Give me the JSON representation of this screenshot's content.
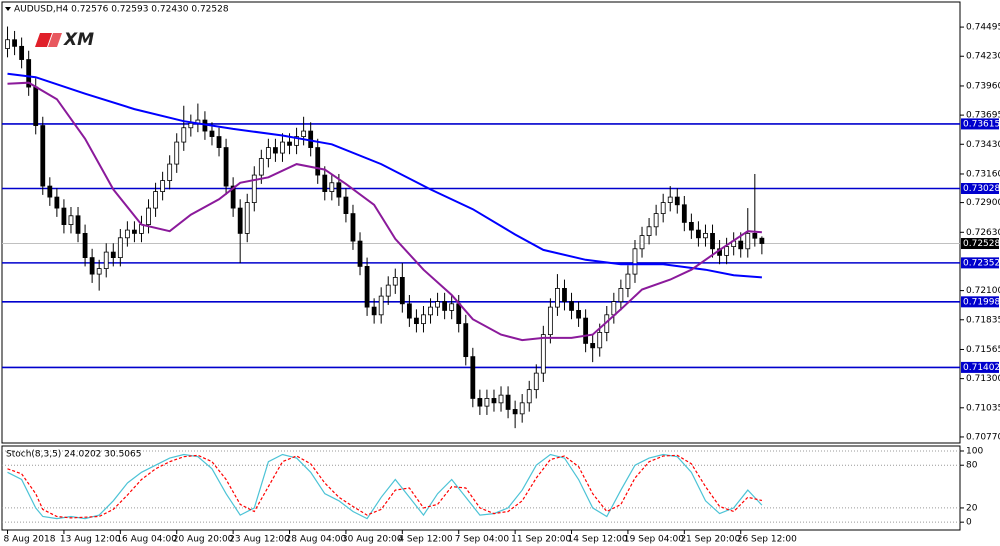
{
  "chart_data": [
    {
      "type": "candlestick",
      "title": "AUDUSD,H4  0.72576 0.72593 0.72430 0.72528",
      "logo": "XM",
      "categories": [
        "8 Aug 2018",
        null,
        null,
        null,
        null,
        null,
        null,
        null,
        "13 Aug 12:00",
        null,
        null,
        null,
        null,
        null,
        null,
        null,
        "16 Aug 04:00",
        null,
        null,
        null,
        null,
        null,
        null,
        null,
        "20 Aug 20:00",
        null,
        null,
        null,
        null,
        null,
        null,
        null,
        "23 Aug 12:00",
        null,
        null,
        null,
        null,
        null,
        null,
        null,
        "28 Aug 04:00",
        null,
        null,
        null,
        null,
        null,
        null,
        null,
        "30 Aug 20:00",
        null,
        null,
        null,
        null,
        null,
        null,
        null,
        "4 Sep 12:00",
        null,
        null,
        null,
        null,
        null,
        null,
        null,
        "7 Sep 04:00",
        null,
        null,
        null,
        null,
        null,
        null,
        null,
        "11 Sep 20:00",
        null,
        null,
        null,
        null,
        null,
        null,
        null,
        "14 Sep 12:00",
        null,
        null,
        null,
        null,
        null,
        null,
        null,
        "19 Sep 04:00",
        null,
        null,
        null,
        null,
        null,
        null,
        null,
        "21 Sep 20:00",
        null,
        null,
        null,
        null,
        null,
        null,
        null,
        "26 Sep 12:00",
        null,
        null,
        null
      ],
      "candles": [
        [
          0.743,
          0.745,
          0.7422,
          0.7438
        ],
        [
          0.7438,
          0.7446,
          0.7424,
          0.7432
        ],
        [
          0.7432,
          0.744,
          0.7412,
          0.742
        ],
        [
          0.742,
          0.7428,
          0.7387,
          0.7395
        ],
        [
          0.7395,
          0.7403,
          0.7352,
          0.736
        ],
        [
          0.736,
          0.7368,
          0.7297,
          0.7305
        ],
        [
          0.7305,
          0.7313,
          0.7287,
          0.7295
        ],
        [
          0.7295,
          0.7303,
          0.7277,
          0.7285
        ],
        [
          0.7285,
          0.7293,
          0.7262,
          0.727
        ],
        [
          0.727,
          0.7286,
          0.7262,
          0.7278
        ],
        [
          0.7278,
          0.7286,
          0.7254,
          0.7262
        ],
        [
          0.7262,
          0.727,
          0.7232,
          0.724
        ],
        [
          0.724,
          0.7248,
          0.7217,
          0.7225
        ],
        [
          0.7225,
          0.7238,
          0.721,
          0.723
        ],
        [
          0.723,
          0.7253,
          0.7222,
          0.7245
        ],
        [
          0.7245,
          0.7253,
          0.7232,
          0.724
        ],
        [
          0.724,
          0.7266,
          0.7232,
          0.7258
        ],
        [
          0.7258,
          0.7273,
          0.725,
          0.7265
        ],
        [
          0.7265,
          0.7273,
          0.7254,
          0.7262
        ],
        [
          0.7262,
          0.7278,
          0.7254,
          0.727
        ],
        [
          0.727,
          0.7293,
          0.7262,
          0.7285
        ],
        [
          0.7285,
          0.7308,
          0.7277,
          0.73
        ],
        [
          0.73,
          0.7318,
          0.7292,
          0.731
        ],
        [
          0.731,
          0.7333,
          0.7302,
          0.7325
        ],
        [
          0.7325,
          0.7353,
          0.7317,
          0.7345
        ],
        [
          0.7345,
          0.7378,
          0.7337,
          0.7358
        ],
        [
          0.7358,
          0.737,
          0.735,
          0.7362
        ],
        [
          0.7362,
          0.738,
          0.7354,
          0.7365
        ],
        [
          0.7365,
          0.7373,
          0.7347,
          0.7355
        ],
        [
          0.7355,
          0.7363,
          0.7342,
          0.735
        ],
        [
          0.735,
          0.7358,
          0.7332,
          0.734
        ],
        [
          0.734,
          0.7348,
          0.7297,
          0.7305
        ],
        [
          0.7305,
          0.7313,
          0.7277,
          0.7285
        ],
        [
          0.7285,
          0.7293,
          0.7235,
          0.7262
        ],
        [
          0.7262,
          0.7298,
          0.7254,
          0.729
        ],
        [
          0.729,
          0.7323,
          0.7282,
          0.7315
        ],
        [
          0.7315,
          0.7338,
          0.7307,
          0.733
        ],
        [
          0.733,
          0.7348,
          0.7322,
          0.734
        ],
        [
          0.734,
          0.7348,
          0.7327,
          0.7335
        ],
        [
          0.7335,
          0.7353,
          0.7327,
          0.7345
        ],
        [
          0.7345,
          0.7353,
          0.7334,
          0.7342
        ],
        [
          0.7342,
          0.7358,
          0.7334,
          0.735
        ],
        [
          0.735,
          0.7368,
          0.7342,
          0.7355
        ],
        [
          0.7355,
          0.7363,
          0.7332,
          0.734
        ],
        [
          0.734,
          0.7348,
          0.7307,
          0.7315
        ],
        [
          0.7315,
          0.7323,
          0.7292,
          0.73
        ],
        [
          0.73,
          0.7316,
          0.7292,
          0.7308
        ],
        [
          0.7308,
          0.7316,
          0.7287,
          0.7295
        ],
        [
          0.7295,
          0.7303,
          0.7272,
          0.728
        ],
        [
          0.728,
          0.7288,
          0.7247,
          0.7255
        ],
        [
          0.7255,
          0.7263,
          0.7224,
          0.7232
        ],
        [
          0.7232,
          0.724,
          0.7187,
          0.7195
        ],
        [
          0.7195,
          0.7203,
          0.718,
          0.7188
        ],
        [
          0.7188,
          0.7213,
          0.718,
          0.7205
        ],
        [
          0.7205,
          0.7223,
          0.7197,
          0.7215
        ],
        [
          0.7215,
          0.723,
          0.7207,
          0.7222
        ],
        [
          0.7222,
          0.7235,
          0.719,
          0.7198
        ],
        [
          0.7198,
          0.7206,
          0.7177,
          0.7185
        ],
        [
          0.7185,
          0.7193,
          0.7172,
          0.718
        ],
        [
          0.718,
          0.7196,
          0.7172,
          0.7188
        ],
        [
          0.7188,
          0.7203,
          0.718,
          0.7195
        ],
        [
          0.7195,
          0.7208,
          0.7187,
          0.72
        ],
        [
          0.72,
          0.7208,
          0.7184,
          0.7192
        ],
        [
          0.7192,
          0.7206,
          0.7184,
          0.7198
        ],
        [
          0.7198,
          0.7206,
          0.7172,
          0.718
        ],
        [
          0.718,
          0.7188,
          0.7142,
          0.715
        ],
        [
          0.715,
          0.7158,
          0.7104,
          0.7112
        ],
        [
          0.7112,
          0.712,
          0.7097,
          0.7105
        ],
        [
          0.7105,
          0.712,
          0.7097,
          0.7112
        ],
        [
          0.7112,
          0.712,
          0.71,
          0.7108
        ],
        [
          0.7108,
          0.7123,
          0.71,
          0.7115
        ],
        [
          0.7115,
          0.7123,
          0.7094,
          0.7102
        ],
        [
          0.7102,
          0.711,
          0.7085,
          0.7098
        ],
        [
          0.7098,
          0.7116,
          0.709,
          0.7108
        ],
        [
          0.7108,
          0.7128,
          0.71,
          0.712
        ],
        [
          0.712,
          0.7143,
          0.7112,
          0.7135
        ],
        [
          0.7135,
          0.7178,
          0.7127,
          0.717
        ],
        [
          0.717,
          0.7203,
          0.7162,
          0.7195
        ],
        [
          0.7195,
          0.7225,
          0.7187,
          0.7212
        ],
        [
          0.7212,
          0.722,
          0.7192,
          0.72
        ],
        [
          0.72,
          0.7208,
          0.7184,
          0.7192
        ],
        [
          0.7192,
          0.72,
          0.7177,
          0.7185
        ],
        [
          0.7185,
          0.7193,
          0.7154,
          0.7162
        ],
        [
          0.7162,
          0.717,
          0.7145,
          0.7158
        ],
        [
          0.7158,
          0.718,
          0.715,
          0.7172
        ],
        [
          0.7172,
          0.7196,
          0.7164,
          0.7188
        ],
        [
          0.7188,
          0.7208,
          0.718,
          0.72
        ],
        [
          0.72,
          0.722,
          0.7192,
          0.7212
        ],
        [
          0.7212,
          0.7233,
          0.7204,
          0.7225
        ],
        [
          0.7225,
          0.7256,
          0.7217,
          0.7248
        ],
        [
          0.7248,
          0.7268,
          0.724,
          0.726
        ],
        [
          0.726,
          0.7276,
          0.7252,
          0.7268
        ],
        [
          0.7268,
          0.7288,
          0.726,
          0.728
        ],
        [
          0.728,
          0.7298,
          0.7272,
          0.729
        ],
        [
          0.729,
          0.7305,
          0.7282,
          0.7295
        ],
        [
          0.7295,
          0.7303,
          0.728,
          0.7288
        ],
        [
          0.7288,
          0.7296,
          0.7264,
          0.7272
        ],
        [
          0.7272,
          0.728,
          0.7257,
          0.7265
        ],
        [
          0.7265,
          0.7273,
          0.725,
          0.7258
        ],
        [
          0.7258,
          0.727,
          0.725,
          0.7262
        ],
        [
          0.7262,
          0.727,
          0.724,
          0.7248
        ],
        [
          0.7248,
          0.7256,
          0.7234,
          0.7242
        ],
        [
          0.7242,
          0.7258,
          0.7234,
          0.725
        ],
        [
          0.725,
          0.7263,
          0.7242,
          0.7255
        ],
        [
          0.7255,
          0.7263,
          0.724,
          0.7248
        ],
        [
          0.7248,
          0.7285,
          0.724,
          0.7262
        ],
        [
          0.7262,
          0.7316,
          0.725,
          0.72576
        ],
        [
          0.72576,
          0.72593,
          0.7243,
          0.72528
        ]
      ],
      "series": [
        {
          "color": "#0000ff",
          "x": [
            0,
            4,
            11,
            18,
            25,
            32,
            39,
            46,
            53,
            60,
            66,
            72,
            76,
            82,
            87,
            93,
            99,
            103,
            107
          ],
          "values": [
            0.7407,
            0.7404,
            0.7389,
            0.7375,
            0.7364,
            0.7357,
            0.7351,
            0.7343,
            0.7325,
            0.7302,
            0.7284,
            0.7261,
            0.7247,
            0.7238,
            0.7234,
            0.7234,
            0.7229,
            0.7224,
            0.7222
          ]
        },
        {
          "color": "#8b1a9b",
          "x": [
            0,
            3,
            7,
            11,
            15,
            19,
            23,
            26,
            30,
            33,
            37,
            41,
            45,
            48,
            52,
            55,
            59,
            63,
            66,
            70,
            73,
            76,
            80,
            83,
            87,
            90,
            94,
            97,
            101,
            105,
            107
          ],
          "values": [
            0.7398,
            0.7399,
            0.7384,
            0.7348,
            0.7302,
            0.727,
            0.7264,
            0.7279,
            0.7293,
            0.7308,
            0.7313,
            0.7325,
            0.732,
            0.7307,
            0.7288,
            0.7257,
            0.7229,
            0.7206,
            0.7184,
            0.717,
            0.7165,
            0.7167,
            0.7167,
            0.717,
            0.7193,
            0.7211,
            0.722,
            0.7229,
            0.7247,
            0.7264,
            0.7263
          ]
        }
      ],
      "levels": [
        {
          "value": 0.73615,
          "color": "#0000cd"
        },
        {
          "value": 0.73028,
          "color": "#0000cd"
        },
        {
          "value": 0.72352,
          "color": "#0000cd"
        },
        {
          "value": 0.71998,
          "color": "#0000cd"
        },
        {
          "value": 0.71402,
          "color": "#0000cd"
        }
      ],
      "last": 0.72528,
      "ylim": [
        0.70715,
        0.74723
      ],
      "yticks": [
        0.74495,
        {
          "value": 0.7423,
          "label": "0.74230"
        },
        {
          "value": 0.7396,
          "label": "0.73960"
        },
        0.73695,
        {
          "value": 0.7343,
          "label": "0.73430"
        },
        {
          "value": 0.7316,
          "label": "0.73160"
        },
        {
          "value": 0.729,
          "label": "0.72900"
        },
        {
          "value": 0.7263,
          "label": "0.72630"
        },
        {
          "value": 0.721,
          "label": "0.72100"
        },
        0.71835,
        0.71565,
        {
          "value": 0.713,
          "label": "0.71300"
        },
        0.71035,
        {
          "value": 0.7077,
          "label": "0.70770"
        }
      ]
    },
    {
      "type": "line",
      "title": "Stoch(8,3,5) 24.0202 30.5065",
      "series": [
        {
          "color": "#4cc3d6",
          "x": [
            0,
            2,
            4,
            5,
            7,
            9,
            11,
            13,
            15,
            17,
            19,
            21,
            23,
            25,
            27,
            29,
            31,
            33,
            35,
            37,
            39,
            41,
            43,
            45,
            47,
            49,
            51,
            53,
            55,
            57,
            59,
            61,
            63,
            65,
            67,
            69,
            71,
            73,
            75,
            77,
            79,
            81,
            83,
            85,
            87,
            89,
            91,
            93,
            95,
            97,
            99,
            101,
            103,
            105,
            107
          ],
          "values": [
            70,
            60,
            20,
            8,
            5,
            8,
            5,
            10,
            30,
            55,
            70,
            80,
            90,
            95,
            92,
            75,
            40,
            10,
            20,
            85,
            95,
            90,
            70,
            40,
            30,
            15,
            5,
            35,
            60,
            35,
            10,
            40,
            60,
            35,
            10,
            12,
            20,
            45,
            80,
            95,
            90,
            60,
            20,
            8,
            45,
            80,
            90,
            95,
            92,
            70,
            30,
            12,
            20,
            45,
            24.0202
          ]
        },
        {
          "color": "#ff0000",
          "dashed": true,
          "x": [
            0,
            2,
            4,
            5,
            7,
            9,
            11,
            13,
            15,
            17,
            19,
            21,
            23,
            25,
            27,
            29,
            31,
            33,
            35,
            37,
            39,
            41,
            43,
            45,
            47,
            49,
            51,
            53,
            55,
            57,
            59,
            61,
            63,
            65,
            67,
            69,
            71,
            73,
            75,
            77,
            79,
            81,
            83,
            85,
            87,
            89,
            91,
            93,
            95,
            97,
            99,
            101,
            103,
            105,
            107
          ],
          "values": [
            75,
            68,
            40,
            18,
            8,
            6,
            7,
            8,
            18,
            38,
            60,
            75,
            85,
            92,
            94,
            85,
            60,
            25,
            15,
            50,
            85,
            93,
            82,
            55,
            35,
            22,
            10,
            18,
            45,
            48,
            20,
            25,
            50,
            48,
            20,
            12,
            15,
            30,
            62,
            88,
            93,
            78,
            40,
            15,
            25,
            62,
            85,
            93,
            94,
            82,
            50,
            22,
            15,
            35,
            30.5065
          ]
        }
      ],
      "ylim": [
        -11,
        107
      ],
      "yticks": [
        100,
        80,
        20,
        0
      ]
    }
  ]
}
